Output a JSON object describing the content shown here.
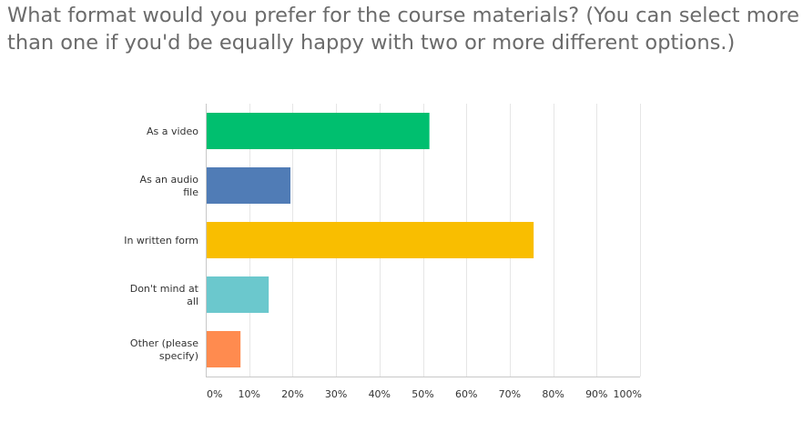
{
  "question": {
    "text": "What format would you prefer for the course materials? (You can select more than one if you'd be equally happy with two or more different options.)"
  },
  "colors": {
    "question_text": "#6b6b6b",
    "gridline": "#e6e6e6",
    "axis": "#c8c8c8",
    "label_text": "#333333"
  },
  "chart_data": {
    "type": "bar",
    "orientation": "horizontal",
    "categories": [
      [
        "As a video"
      ],
      [
        "As an audio",
        "file"
      ],
      [
        "In written form"
      ],
      [
        "Don't mind at",
        "all"
      ],
      [
        "Other (please",
        "specify)"
      ]
    ],
    "values": [
      51.5,
      19.5,
      75.5,
      14.5,
      8
    ],
    "value_unit": "percent",
    "bar_colors": [
      "#00bf6f",
      "#507cb6",
      "#f9be00",
      "#6bc8cd",
      "#ff8b4f"
    ],
    "xlim": [
      0,
      100
    ],
    "xticks": [
      {
        "value": 0,
        "label": "0%"
      },
      {
        "value": 10,
        "label": "10%"
      },
      {
        "value": 20,
        "label": "20%"
      },
      {
        "value": 30,
        "label": "30%"
      },
      {
        "value": 40,
        "label": "40%"
      },
      {
        "value": 50,
        "label": "50%"
      },
      {
        "value": 60,
        "label": "60%"
      },
      {
        "value": 70,
        "label": "70%"
      },
      {
        "value": 80,
        "label": "80%"
      },
      {
        "value": 90,
        "label": "90%"
      },
      {
        "value": 100,
        "label": "100%"
      }
    ],
    "grid": true
  }
}
